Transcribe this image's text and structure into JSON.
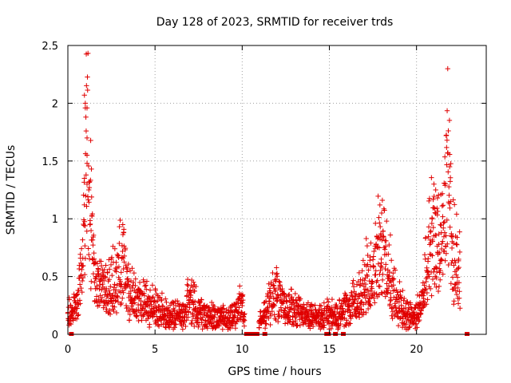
{
  "chart_data": {
    "type": "scatter",
    "title": "Day 128 of 2023, SRMTID for receiver trds",
    "xlabel": "GPS time / hours",
    "ylabel": "SRMTID / TECUs",
    "xlim": [
      0,
      24
    ],
    "ylim": [
      0,
      2.5
    ],
    "xticks": [
      0,
      5,
      10,
      15,
      20
    ],
    "xtick_labels": [
      "0",
      "5",
      "10",
      "15",
      "20"
    ],
    "yticks": [
      0,
      0.5,
      1,
      1.5,
      2,
      2.5
    ],
    "ytick_labels": [
      "0",
      "0.5",
      "1",
      "1.5",
      "2",
      "2.5"
    ],
    "grid": true,
    "series": [
      {
        "name": "SRMTID",
        "color": "#e00000",
        "marker": "plus",
        "anchors": [
          [
            0.0,
            0.18
          ],
          [
            0.3,
            0.22
          ],
          [
            0.6,
            0.3
          ],
          [
            0.85,
            0.75
          ],
          [
            1.0,
            1.2
          ],
          [
            1.05,
            2.0
          ],
          [
            1.15,
            1.6
          ],
          [
            1.3,
            1.0
          ],
          [
            1.5,
            0.55
          ],
          [
            1.8,
            0.45
          ],
          [
            2.2,
            0.4
          ],
          [
            2.6,
            0.45
          ],
          [
            3.0,
            0.55
          ],
          [
            3.2,
            0.7
          ],
          [
            3.5,
            0.35
          ],
          [
            4.0,
            0.3
          ],
          [
            4.5,
            0.28
          ],
          [
            5.0,
            0.22
          ],
          [
            5.5,
            0.2
          ],
          [
            6.0,
            0.18
          ],
          [
            6.5,
            0.16
          ],
          [
            7.0,
            0.3
          ],
          [
            7.5,
            0.2
          ],
          [
            8.0,
            0.16
          ],
          [
            8.5,
            0.15
          ],
          [
            9.0,
            0.14
          ],
          [
            9.5,
            0.15
          ],
          [
            10.0,
            0.3
          ],
          [
            10.2,
            0.05
          ],
          [
            10.8,
            0.05
          ],
          [
            11.2,
            0.15
          ],
          [
            11.6,
            0.3
          ],
          [
            12.0,
            0.35
          ],
          [
            12.5,
            0.25
          ],
          [
            13.0,
            0.2
          ],
          [
            13.5,
            0.17
          ],
          [
            14.0,
            0.15
          ],
          [
            14.5,
            0.14
          ],
          [
            15.0,
            0.18
          ],
          [
            15.5,
            0.16
          ],
          [
            16.0,
            0.22
          ],
          [
            16.5,
            0.28
          ],
          [
            17.0,
            0.45
          ],
          [
            17.5,
            0.55
          ],
          [
            18.0,
            0.75
          ],
          [
            18.4,
            0.5
          ],
          [
            18.8,
            0.3
          ],
          [
            19.2,
            0.22
          ],
          [
            19.6,
            0.18
          ],
          [
            20.0,
            0.18
          ],
          [
            20.3,
            0.3
          ],
          [
            20.7,
            0.65
          ],
          [
            21.0,
            0.9
          ],
          [
            21.3,
            0.7
          ],
          [
            21.6,
            1.1
          ],
          [
            21.8,
            1.4
          ],
          [
            22.0,
            0.8
          ],
          [
            22.3,
            0.55
          ],
          [
            22.5,
            0.5
          ]
        ],
        "peaks": [
          [
            0.95,
            2.07
          ],
          [
            1.0,
            2.0
          ],
          [
            1.0,
            1.96
          ],
          [
            1.05,
            1.76
          ],
          [
            1.1,
            1.7
          ],
          [
            1.1,
            1.55
          ],
          [
            1.1,
            1.48
          ],
          [
            1.35,
            1.43
          ],
          [
            0.95,
            1.35
          ],
          [
            1.1,
            1.3
          ],
          [
            1.2,
            1.25
          ],
          [
            3.15,
            0.95
          ],
          [
            3.2,
            0.88
          ],
          [
            17.9,
            1.12
          ],
          [
            18.0,
            1.05
          ],
          [
            18.5,
            0.86
          ],
          [
            21.7,
            1.72
          ],
          [
            21.75,
            1.68
          ],
          [
            21.8,
            1.57
          ],
          [
            21.9,
            1.45
          ],
          [
            21.0,
            1.3
          ],
          [
            21.1,
            1.25
          ],
          [
            21.2,
            1.18
          ],
          [
            22.3,
            1.04
          ],
          [
            20.9,
            1.0
          ]
        ],
        "zero_values": [
          0.2,
          10.25,
          10.35,
          10.55,
          10.7,
          10.85,
          11.3,
          14.85,
          14.95,
          15.35,
          15.8,
          22.9
        ]
      }
    ]
  }
}
